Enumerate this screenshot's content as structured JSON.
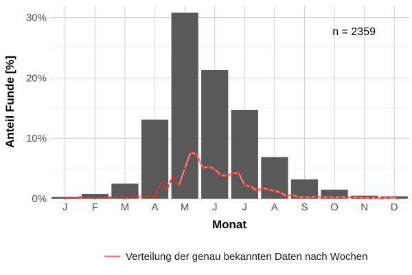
{
  "chart_data": {
    "type": "bar",
    "xlabel": "Monat",
    "ylabel": "Anteil Funde [%]",
    "ylim": [
      0,
      32
    ],
    "yticks": [
      0,
      10,
      20,
      30
    ],
    "ytick_labels": [
      "0%",
      "10%",
      "20%",
      "30%"
    ],
    "categories": [
      "J",
      "F",
      "M",
      "A",
      "M",
      "J",
      "J",
      "A",
      "S",
      "O",
      "N",
      "D"
    ],
    "values": [
      0.3,
      0.8,
      2.5,
      13.1,
      30.8,
      21.3,
      14.7,
      6.9,
      3.2,
      1.5,
      0.5,
      0.4
    ],
    "bar_color": "#595959",
    "annotation": "n = 2359",
    "grid": true,
    "overlay_line": {
      "name": "Verteilung der genau bekannten Daten nach Wochen",
      "color": "#f8766d",
      "marker_color": "#e8301f",
      "x_month": [
        0.5,
        1.0,
        1.5,
        2.0,
        2.5,
        2.9,
        3.1,
        3.3,
        3.5,
        3.7,
        3.9,
        4.1,
        4.3,
        4.5,
        4.7,
        4.9,
        5.1,
        5.3,
        5.5,
        5.7,
        5.9,
        6.1,
        6.3,
        6.5,
        6.7,
        6.9,
        7.1,
        7.3,
        7.5,
        7.7,
        7.9,
        8.1,
        8.3,
        8.5,
        8.7,
        8.9,
        9.1,
        9.3,
        9.5,
        9.7,
        9.9,
        10.1,
        10.3,
        10.5,
        10.7,
        10.9,
        11.1,
        11.3,
        11.6
      ],
      "y": [
        0.1,
        0.2,
        0.1,
        0.2,
        0.1,
        0.4,
        0.2,
        0.5,
        0.3,
        2.6,
        1.6,
        3.6,
        2.1,
        5.0,
        7.7,
        7.3,
        5.1,
        5.3,
        4.9,
        3.9,
        3.8,
        4.2,
        4.3,
        2.2,
        2.1,
        1.3,
        1.8,
        1.5,
        1.3,
        1.0,
        0.4,
        0.7,
        0.2,
        0.3,
        0.2,
        0.4,
        0.2,
        0.3,
        0.2,
        0.3,
        0.2,
        0.3,
        0.2,
        0.2,
        0.1,
        0.2,
        0.1,
        0.2,
        0.1
      ],
      "dashed_until_index": 12
    },
    "legend_position": "bottom-right"
  }
}
